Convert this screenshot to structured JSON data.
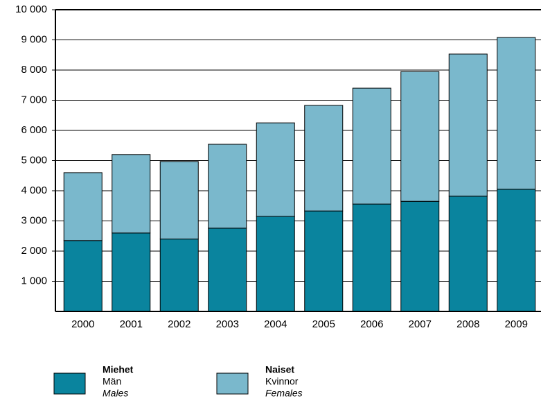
{
  "chart_data": {
    "type": "stacked_bar",
    "categories": [
      "2000",
      "2001",
      "2002",
      "2003",
      "2004",
      "2005",
      "2006",
      "2007",
      "2008",
      "2009"
    ],
    "series": [
      {
        "name": "Miehet",
        "name_sv": "Män",
        "name_en": "Males",
        "color": "#0a849e",
        "values": [
          2350,
          2600,
          2400,
          2760,
          3150,
          3330,
          3560,
          3650,
          3820,
          4050
        ]
      },
      {
        "name": "Naiset",
        "name_sv": "Kvinnor",
        "name_en": "Females",
        "color": "#7ab8cc",
        "values": [
          2250,
          2600,
          2570,
          2780,
          3100,
          3500,
          3840,
          4300,
          4710,
          5030
        ]
      }
    ],
    "ylim": [
      0,
      10000
    ],
    "yticks": [
      {
        "value": 1000,
        "label": "1 000"
      },
      {
        "value": 2000,
        "label": "2 000"
      },
      {
        "value": 3000,
        "label": "3 000"
      },
      {
        "value": 4000,
        "label": "4 000"
      },
      {
        "value": 5000,
        "label": "5 000"
      },
      {
        "value": 6000,
        "label": "6 000"
      },
      {
        "value": 7000,
        "label": "7 000"
      },
      {
        "value": 8000,
        "label": "8 000"
      },
      {
        "value": 9000,
        "label": "9 000"
      },
      {
        "value": 10000,
        "label": "10 000"
      }
    ],
    "grid": true
  }
}
